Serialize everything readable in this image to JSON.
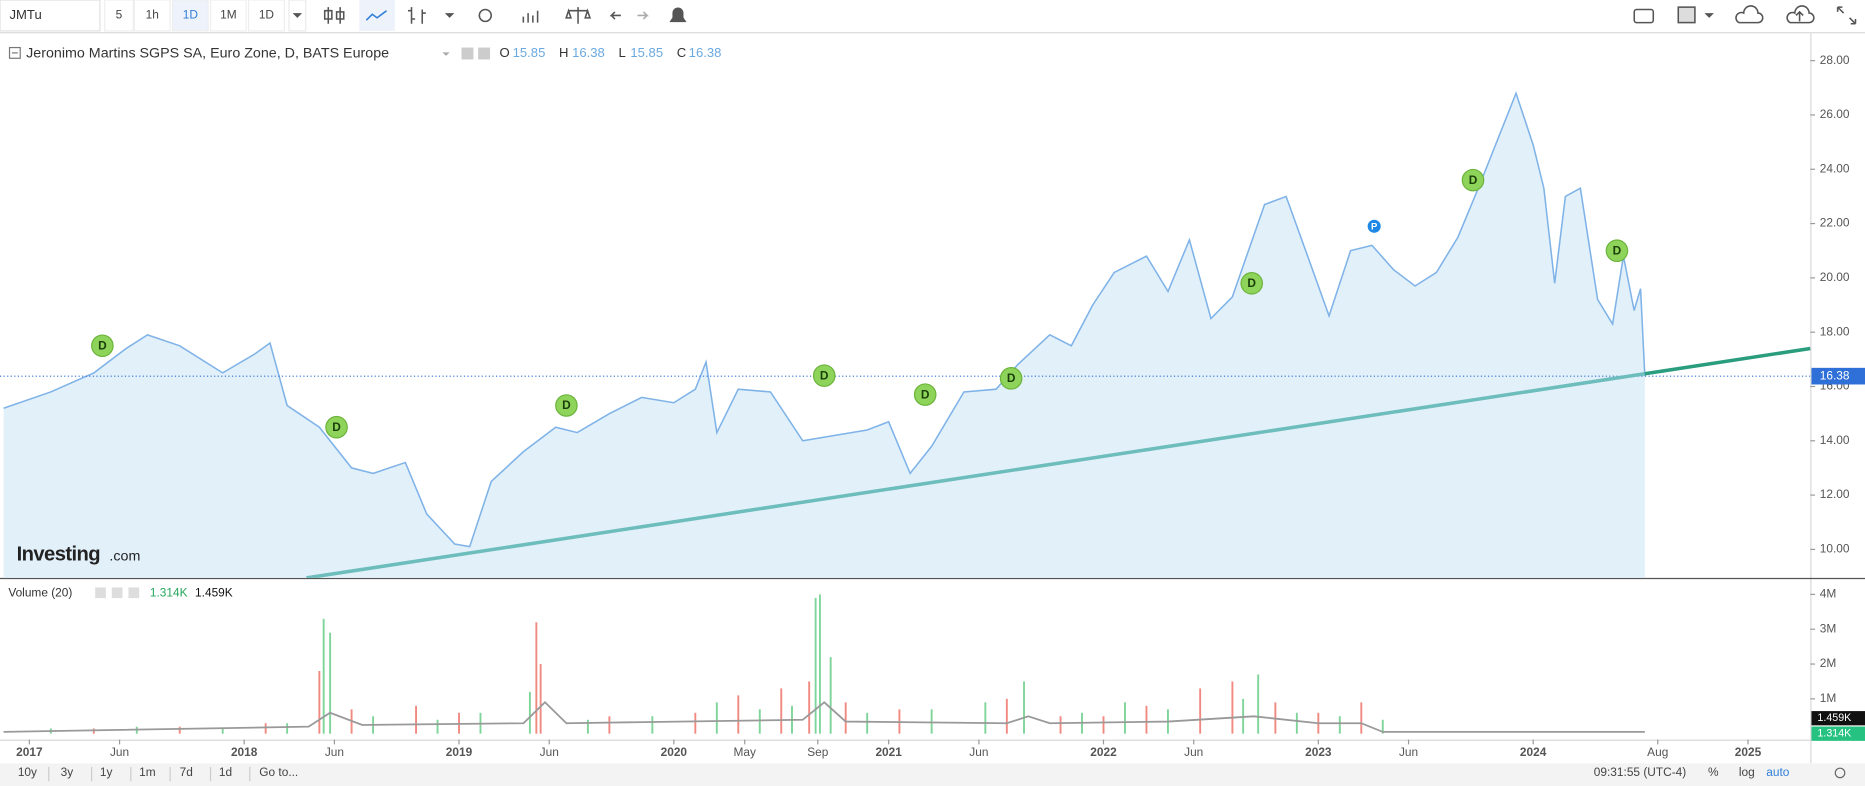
{
  "toolbar": {
    "symbol": "JMTu",
    "intervals": [
      "5",
      "1h",
      "1D",
      "1M",
      "1D"
    ]
  },
  "legend": {
    "title": "Jeronimo Martins SGPS SA, Euro Zone, D, BATS Europe",
    "open_label": "O",
    "open": 15.85,
    "high_label": "H",
    "high": 16.38,
    "low_label": "L",
    "low": 15.85,
    "close_label": "C",
    "close": 16.38
  },
  "chart_data": {
    "type": "line",
    "color": "#7fb3e8",
    "fill": "#e2f0fa",
    "x": [
      2016.88,
      2017.1,
      2017.3,
      2017.45,
      2017.55,
      2017.7,
      2017.9,
      2018.05,
      2018.12,
      2018.2,
      2018.35,
      2018.5,
      2018.6,
      2018.75,
      2018.85,
      2018.98,
      2019.05,
      2019.15,
      2019.3,
      2019.45,
      2019.55,
      2019.7,
      2019.85,
      2020.0,
      2020.1,
      2020.15,
      2020.2,
      2020.3,
      2020.45,
      2020.6,
      2020.75,
      2020.9,
      2021.0,
      2021.1,
      2021.2,
      2021.35,
      2021.5,
      2021.6,
      2021.75,
      2021.85,
      2021.95,
      2022.05,
      2022.2,
      2022.3,
      2022.4,
      2022.5,
      2022.6,
      2022.75,
      2022.85,
      2022.95,
      2023.05,
      2023.15,
      2023.25,
      2023.35,
      2023.45,
      2023.55,
      2023.65,
      2023.75,
      2023.85,
      2023.92,
      2024.0,
      2024.05,
      2024.1,
      2024.15,
      2024.22,
      2024.3,
      2024.37,
      2024.42,
      2024.47,
      2024.5,
      2024.52
    ],
    "values": [
      15.2,
      15.8,
      16.5,
      17.4,
      17.9,
      17.5,
      16.5,
      17.2,
      17.6,
      15.3,
      14.5,
      13.0,
      12.8,
      13.2,
      11.3,
      10.2,
      10.1,
      12.5,
      13.6,
      14.5,
      14.3,
      15.0,
      15.6,
      15.4,
      15.9,
      16.9,
      14.3,
      15.9,
      15.8,
      14.0,
      14.2,
      14.4,
      14.7,
      12.8,
      13.8,
      15.8,
      15.9,
      16.8,
      17.9,
      17.5,
      19.0,
      20.2,
      20.8,
      19.5,
      21.4,
      18.5,
      19.3,
      22.7,
      23.0,
      20.8,
      18.6,
      21.0,
      21.2,
      20.3,
      19.7,
      20.2,
      21.5,
      23.4,
      25.4,
      26.8,
      24.9,
      23.3,
      19.8,
      23.0,
      23.3,
      19.2,
      18.3,
      20.8,
      18.8,
      19.6,
      16.38
    ],
    "xlim": [
      2016.88,
      2025.29
    ],
    "ylim": [
      8.95,
      28.92
    ],
    "yticks": [
      {
        "value": 10,
        "label": "10.00"
      },
      {
        "value": 12,
        "label": "12.00"
      },
      {
        "value": 14,
        "label": "14.00"
      },
      {
        "value": 16,
        "label": "16.00"
      },
      {
        "value": 18,
        "label": "18.00"
      },
      {
        "value": 20,
        "label": "20.00"
      },
      {
        "value": 22,
        "label": "22.00"
      },
      {
        "value": 24,
        "label": "24.00"
      },
      {
        "value": 26,
        "label": "26.00"
      },
      {
        "value": 28,
        "label": "28.00"
      }
    ],
    "xticks": [
      {
        "value": 2017.0,
        "label": "2017"
      },
      {
        "value": 2017.42,
        "label": "Jun"
      },
      {
        "value": 2018.0,
        "label": "2018"
      },
      {
        "value": 2018.42,
        "label": "Jun"
      },
      {
        "value": 2019.0,
        "label": "2019"
      },
      {
        "value": 2019.42,
        "label": "Jun"
      },
      {
        "value": 2020.0,
        "label": "2020"
      },
      {
        "value": 2020.33,
        "label": "May"
      },
      {
        "value": 2020.67,
        "label": "Sep"
      },
      {
        "value": 2021.0,
        "label": "2021"
      },
      {
        "value": 2021.42,
        "label": "Jun"
      },
      {
        "value": 2022.0,
        "label": "2022"
      },
      {
        "value": 2022.42,
        "label": "Jun"
      },
      {
        "value": 2023.0,
        "label": "2023"
      },
      {
        "value": 2023.42,
        "label": "Jun"
      },
      {
        "value": 2024.0,
        "label": "2024"
      },
      {
        "value": 2024.58,
        "label": "Aug"
      },
      {
        "value": 2025.0,
        "label": "2025"
      }
    ],
    "last_value": 16.38,
    "trendline": {
      "x": [
        2018.29,
        2025.29
      ],
      "values": [
        8.95,
        17.4
      ],
      "color": "#6cbdbb",
      "extension_color": "#2a9d7f"
    },
    "events": [
      {
        "label": "D",
        "x": 2017.34,
        "y": 17.5
      },
      {
        "label": "D",
        "x": 2018.43,
        "y": 14.5
      },
      {
        "label": "D",
        "x": 2019.5,
        "y": 15.3
      },
      {
        "label": "D",
        "x": 2020.7,
        "y": 16.4
      },
      {
        "label": "D",
        "x": 2021.17,
        "y": 15.7
      },
      {
        "label": "D",
        "x": 2021.57,
        "y": 16.3
      },
      {
        "label": "D",
        "x": 2022.69,
        "y": 19.8
      },
      {
        "label": "P",
        "x": 2023.26,
        "y": 21.9
      },
      {
        "label": "D",
        "x": 2023.72,
        "y": 23.6
      },
      {
        "label": "D",
        "x": 2024.39,
        "y": 21.0
      }
    ],
    "watermark": "Investing",
    "watermark_suffix": ".com"
  },
  "volume": {
    "title": "Volume (20)",
    "value_a": {
      "value": 1314,
      "label": "1.314K"
    },
    "value_b": {
      "value": 1459,
      "label": "1.459K"
    },
    "ylim": [
      0,
      4440000
    ],
    "yticks": [
      {
        "value": 1000000,
        "label": "1M"
      },
      {
        "value": 2000000,
        "label": "2M"
      },
      {
        "value": 3000000,
        "label": "3M"
      },
      {
        "value": 4000000,
        "label": "4M"
      }
    ],
    "up": {
      "color": "#7fd49a",
      "x": [
        2017.1,
        2017.5,
        2017.9,
        2018.2,
        2018.37,
        2018.4,
        2018.6,
        2018.9,
        2019.1,
        2019.33,
        2019.6,
        2019.9,
        2020.2,
        2020.4,
        2020.55,
        2020.66,
        2020.68,
        2020.73,
        2020.9,
        2021.2,
        2021.45,
        2021.63,
        2021.9,
        2022.1,
        2022.3,
        2022.65,
        2022.72,
        2022.9,
        2023.1,
        2023.3
      ],
      "values": [
        150000,
        200000,
        150000,
        300000,
        3300000,
        2900000,
        500000,
        400000,
        600000,
        1200000,
        400000,
        500000,
        900000,
        700000,
        800000,
        3900000,
        4000000,
        2200000,
        600000,
        700000,
        900000,
        1500000,
        600000,
        900000,
        700000,
        1000000,
        1700000,
        600000,
        500000,
        400000
      ]
    },
    "down": {
      "color": "#f08a80",
      "x": [
        2017.3,
        2017.7,
        2018.1,
        2018.35,
        2018.5,
        2018.8,
        2019.0,
        2019.36,
        2019.38,
        2019.7,
        2020.1,
        2020.3,
        2020.5,
        2020.63,
        2020.8,
        2021.05,
        2021.55,
        2021.8,
        2022.0,
        2022.2,
        2022.45,
        2022.6,
        2022.8,
        2023.0,
        2023.2
      ],
      "values": [
        150000,
        200000,
        300000,
        1800000,
        700000,
        800000,
        600000,
        3200000,
        2000000,
        500000,
        600000,
        1100000,
        1300000,
        1500000,
        900000,
        700000,
        1000000,
        500000,
        500000,
        800000,
        1300000,
        1500000,
        900000,
        600000,
        900000
      ]
    },
    "ma": {
      "color": "#999999",
      "x": [
        2016.88,
        2018.3,
        2018.4,
        2018.55,
        2019.3,
        2019.4,
        2019.5,
        2020.6,
        2020.7,
        2020.8,
        2021.55,
        2021.65,
        2021.75,
        2022.3,
        2022.7,
        2023.0,
        2023.2,
        2023.3,
        2024.52
      ],
      "values": [
        50000,
        200000,
        600000,
        250000,
        300000,
        900000,
        300000,
        400000,
        900000,
        350000,
        300000,
        500000,
        300000,
        350000,
        500000,
        300000,
        300000,
        50000,
        50000
      ]
    }
  },
  "bottom_bar": {
    "ranges": [
      "10y",
      "3y",
      "1y",
      "1m",
      "7d",
      "1d"
    ],
    "goto": "Go to...",
    "clock": "09:31:55 (UTC-4)",
    "options": [
      "%",
      "log",
      "auto"
    ]
  }
}
